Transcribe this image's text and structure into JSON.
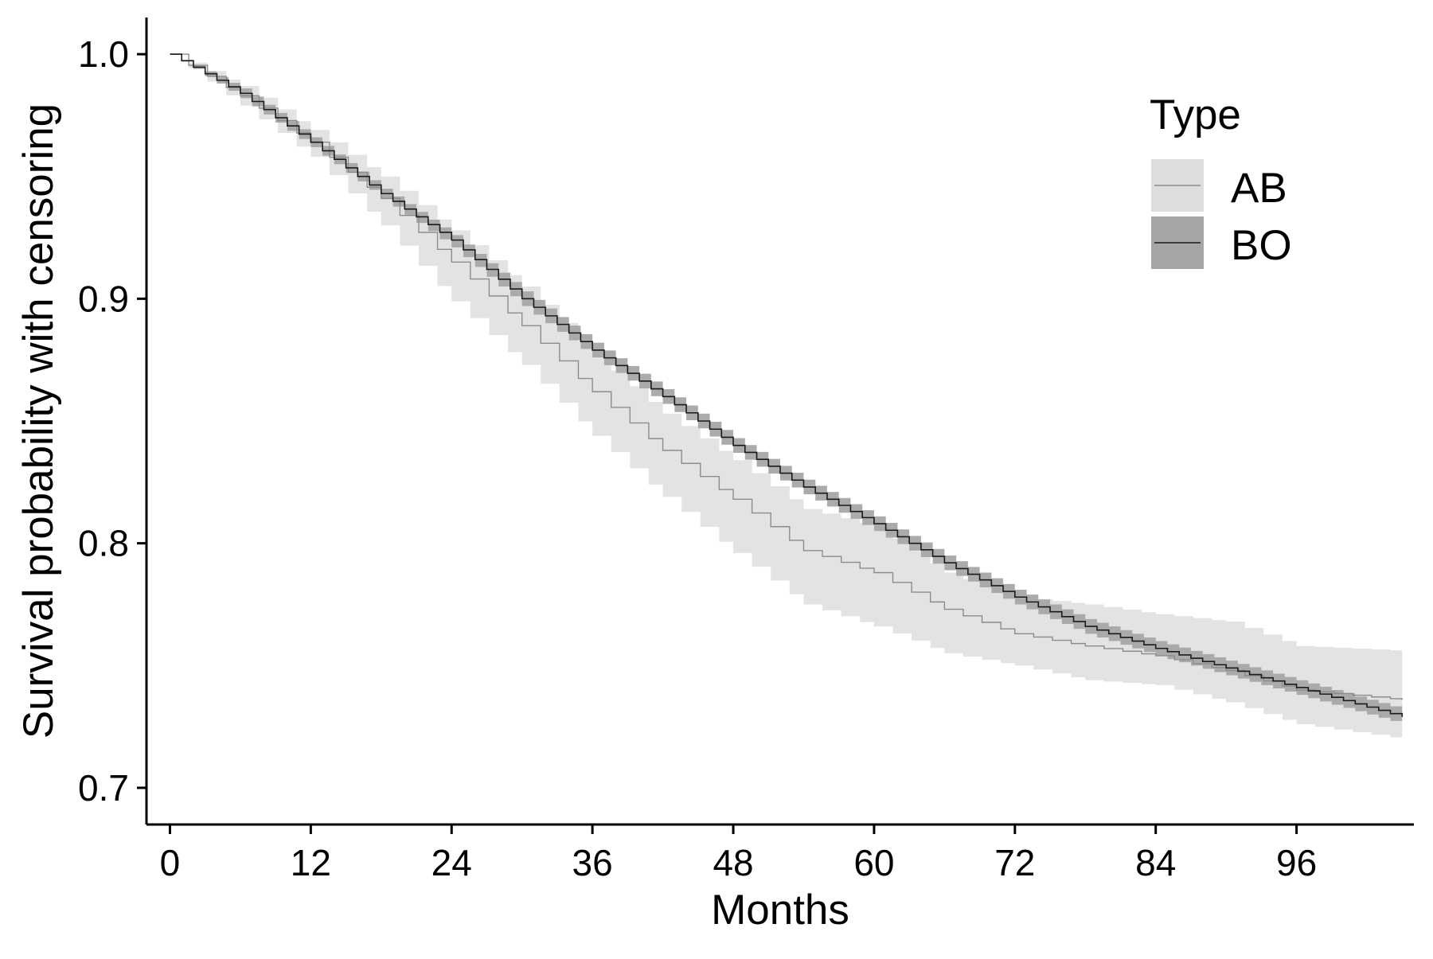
{
  "chart_data": {
    "type": "line",
    "subtype": "kaplan-meier step survival curves with confidence bands",
    "title": "",
    "xlabel": "Months",
    "ylabel": "Survival probability with censoring",
    "xlim": [
      -2,
      106
    ],
    "ylim": [
      0.685,
      1.015
    ],
    "x_ticks": [
      {
        "value": 0,
        "label": "0"
      },
      {
        "value": 12,
        "label": "12"
      },
      {
        "value": 24,
        "label": "24"
      },
      {
        "value": 36,
        "label": "36"
      },
      {
        "value": 48,
        "label": "48"
      },
      {
        "value": 60,
        "label": "60"
      },
      {
        "value": 72,
        "label": "72"
      },
      {
        "value": 84,
        "label": "84"
      },
      {
        "value": 96,
        "label": "96"
      }
    ],
    "y_ticks": [
      {
        "value": 0.7,
        "label": "0.7"
      },
      {
        "value": 0.8,
        "label": "0.8"
      },
      {
        "value": 0.9,
        "label": "0.9"
      },
      {
        "value": 1.0,
        "label": "1.0"
      }
    ],
    "grid": false,
    "legend": {
      "title": "Type",
      "position": "top-right"
    },
    "series": [
      {
        "name": "AB",
        "line_color": "#8c8c8c",
        "band_color": "#dedede",
        "x": [
          0,
          6,
          12,
          18,
          24,
          30,
          36,
          42,
          48,
          54,
          60,
          66,
          72,
          78,
          84,
          90,
          96,
          105
        ],
        "y": [
          1.0,
          0.983,
          0.964,
          0.941,
          0.915,
          0.889,
          0.862,
          0.838,
          0.818,
          0.797,
          0.788,
          0.773,
          0.763,
          0.758,
          0.754,
          0.748,
          0.74,
          0.736
        ],
        "lower": [
          1.0,
          0.979,
          0.958,
          0.93,
          0.899,
          0.873,
          0.844,
          0.819,
          0.796,
          0.775,
          0.766,
          0.755,
          0.75,
          0.744,
          0.742,
          0.735,
          0.726,
          0.72
        ],
        "upper": [
          1.0,
          0.987,
          0.969,
          0.95,
          0.928,
          0.905,
          0.877,
          0.853,
          0.834,
          0.814,
          0.807,
          0.788,
          0.778,
          0.775,
          0.771,
          0.768,
          0.758,
          0.756
        ]
      },
      {
        "name": "BO",
        "line_color": "#1a1a1a",
        "band_color": "#a6a6a6",
        "x": [
          0,
          6,
          12,
          18,
          24,
          30,
          36,
          42,
          48,
          54,
          60,
          66,
          72,
          78,
          84,
          90,
          96,
          105
        ],
        "y": [
          1.0,
          0.984,
          0.964,
          0.943,
          0.924,
          0.9,
          0.879,
          0.86,
          0.84,
          0.823,
          0.808,
          0.792,
          0.778,
          0.766,
          0.757,
          0.749,
          0.741,
          0.729
        ],
        "lower": [
          1.0,
          0.982,
          0.962,
          0.941,
          0.921,
          0.897,
          0.876,
          0.857,
          0.837,
          0.82,
          0.805,
          0.789,
          0.775,
          0.763,
          0.754,
          0.746,
          0.738,
          0.726
        ],
        "upper": [
          1.0,
          0.986,
          0.966,
          0.945,
          0.926,
          0.903,
          0.882,
          0.863,
          0.843,
          0.826,
          0.811,
          0.795,
          0.781,
          0.769,
          0.76,
          0.752,
          0.744,
          0.732
        ]
      }
    ]
  }
}
